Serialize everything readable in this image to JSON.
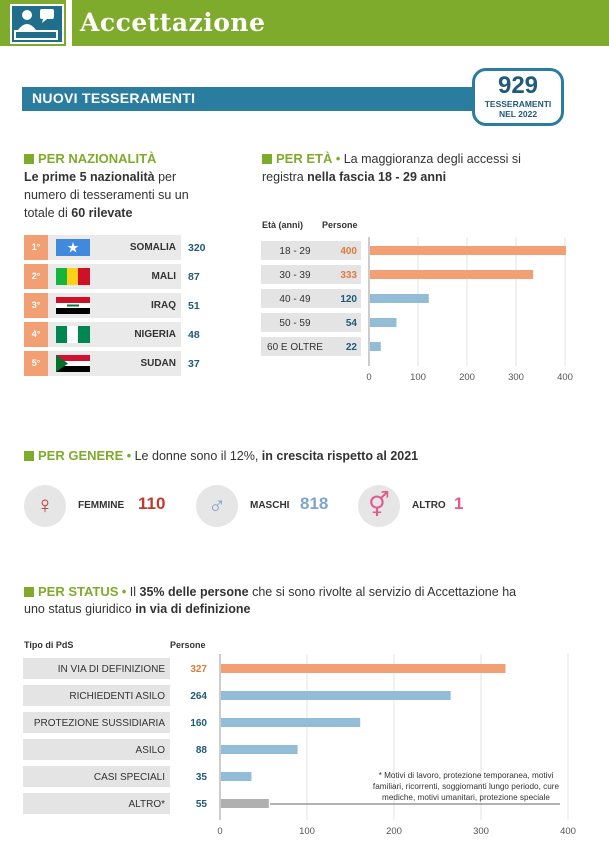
{
  "header": {
    "title": "Accettazione"
  },
  "banner": {
    "title": "NUOVI TESSERAMENTI",
    "total_value": "929",
    "total_label_1": "TESSERAMENTI",
    "total_label_2": "NEL 2022"
  },
  "nationality": {
    "heading": "PER NAZIONALITÀ",
    "desc_bold1": "Le prime 5 nazionalità",
    "desc_plain1": " per",
    "desc_line2": "numero di tesseramenti su un",
    "desc_plain2": "totale di ",
    "desc_bold2": "60 rilevate",
    "rows": [
      {
        "rank": "1°",
        "country": "SOMALIA",
        "value": "320"
      },
      {
        "rank": "2°",
        "country": "MALI",
        "value": "87"
      },
      {
        "rank": "3°",
        "country": "IRAQ",
        "value": "51"
      },
      {
        "rank": "4°",
        "country": "NIGERIA",
        "value": "48"
      },
      {
        "rank": "5°",
        "country": "SUDAN",
        "value": "37"
      }
    ]
  },
  "age": {
    "heading": "PER ETÀ",
    "desc_plain1": "La maggioranza degli accessi si",
    "desc_plain2": "registra ",
    "desc_bold": "nella fascia 18 - 29 anni",
    "col_age": "Età (anni)",
    "col_people": "Persone"
  },
  "gender": {
    "heading": "PER GENERE",
    "desc_plain": "Le donne sono il 12%, ",
    "desc_bold": "in crescita rispetto al 2021",
    "items": [
      {
        "label": "FEMMINE",
        "value": "110",
        "symbol": "♀",
        "color": "#c0392b"
      },
      {
        "label": "MASCHI",
        "value": "818",
        "symbol": "♂",
        "color": "#7fa6c8"
      },
      {
        "label": "ALTRO",
        "value": "1",
        "symbol": "⚥",
        "color": "#e05a8f"
      }
    ]
  },
  "status": {
    "heading": "PER STATUS",
    "desc_plain1": "Il ",
    "desc_bold1": "35% delle persone",
    "desc_plain2": " che si sono rivolte al servizio di Accettazione ha",
    "desc_plain3": "uno status giuridico ",
    "desc_bold2": "in via di definizione",
    "col_type": "Tipo di PdS",
    "col_people": "Persone",
    "note_lines": [
      "* Motivi di lavoro, protezione temporanea, motivi",
      "familiari, ricorrenti, soggiornanti lungo periodo, cure",
      "mediche, motivi umanitari, protezione speciale"
    ]
  },
  "colors": {
    "green": "#7fab2c",
    "blue": "#2a7d9e",
    "orange": "#f2a073",
    "lightblue": "#93bcd6",
    "gray": "#b0b0b0"
  },
  "chart_data": [
    {
      "type": "bar",
      "orientation": "horizontal",
      "categories": [
        "18 - 29",
        "30 - 39",
        "40 - 49",
        "50 - 59",
        "60 E OLTRE"
      ],
      "values": [
        400,
        333,
        120,
        54,
        22
      ],
      "colors": [
        "#f2a073",
        "#f2a073",
        "#93bcd6",
        "#93bcd6",
        "#93bcd6"
      ],
      "xlim": [
        0,
        400
      ],
      "xticks": [
        0,
        100,
        200,
        300,
        400
      ]
    },
    {
      "type": "bar",
      "orientation": "horizontal",
      "categories": [
        "IN VIA DI DEFINIZIONE",
        "RICHIEDENTI ASILO",
        "PROTEZIONE SUSSIDIARIA",
        "ASILO",
        "CASI SPECIALI",
        "ALTRO*"
      ],
      "values": [
        327,
        264,
        160,
        88,
        35,
        55
      ],
      "colors": [
        "#f2a073",
        "#93bcd6",
        "#93bcd6",
        "#93bcd6",
        "#93bcd6",
        "#b0b0b0"
      ],
      "xlim": [
        0,
        400
      ],
      "xticks": [
        0,
        100,
        200,
        300,
        400
      ]
    }
  ]
}
